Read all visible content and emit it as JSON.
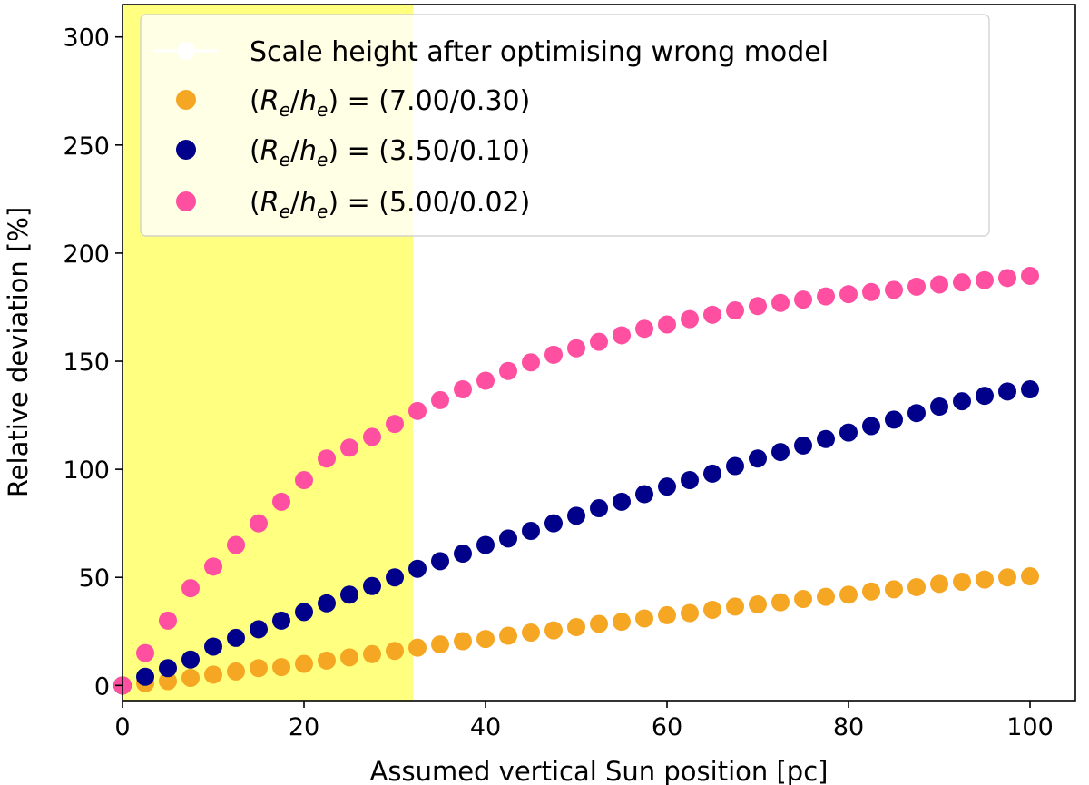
{
  "chart_data": {
    "type": "scatter",
    "title": "",
    "xlabel": "Assumed vertical Sun position [pc]",
    "ylabel": "Relative deviation [%]",
    "xlim": [
      0,
      105
    ],
    "ylim": [
      -7,
      315
    ],
    "xticks": [
      0,
      20,
      40,
      60,
      80,
      100
    ],
    "yticks": [
      0,
      50,
      100,
      150,
      200,
      250,
      300
    ],
    "grid": false,
    "legend_position": "top-left",
    "shaded_region": {
      "x_start": 0,
      "x_end": 32,
      "color": "#ffff80"
    },
    "colors": {
      "orange": "#f5a623",
      "navy": "#00008b",
      "pink": "#ff4fa0",
      "shade": "#ffff80"
    },
    "series": [
      {
        "name": "Scale height after optimising wrong model",
        "style": "line-marker",
        "color": "#ffffff",
        "x": [
          0,
          100
        ],
        "values": [
          0,
          0
        ]
      },
      {
        "name": "(R_e/h_e) = (7.00/0.30)",
        "style": "marker",
        "color": "#f5a623",
        "x": [
          0,
          2.5,
          5,
          7.5,
          10,
          12.5,
          15,
          17.5,
          20,
          22.5,
          25,
          27.5,
          30,
          32.5,
          35,
          37.5,
          40,
          42.5,
          45,
          47.5,
          50,
          52.5,
          55,
          57.5,
          60,
          62.5,
          65,
          67.5,
          70,
          72.5,
          75,
          77.5,
          80,
          82.5,
          85,
          87.5,
          90,
          92.5,
          95,
          97.5,
          100
        ],
        "values": [
          0,
          1,
          2,
          3.5,
          5,
          6.5,
          8,
          8.5,
          10,
          11.5,
          13,
          14.5,
          16,
          17.5,
          19,
          20.5,
          21.5,
          23,
          24.5,
          25.5,
          27,
          28.5,
          29.5,
          31,
          32.5,
          33.5,
          35,
          36.5,
          37.5,
          38.5,
          40,
          41,
          42,
          43.5,
          44.5,
          45.5,
          47,
          48,
          49,
          50,
          50.5
        ]
      },
      {
        "name": "(R_e/h_e) = (3.50/0.10)",
        "style": "marker",
        "color": "#00008b",
        "x": [
          0,
          2.5,
          5,
          7.5,
          10,
          12.5,
          15,
          17.5,
          20,
          22.5,
          25,
          27.5,
          30,
          32.5,
          35,
          37.5,
          40,
          42.5,
          45,
          47.5,
          50,
          52.5,
          55,
          57.5,
          60,
          62.5,
          65,
          67.5,
          70,
          72.5,
          75,
          77.5,
          80,
          82.5,
          85,
          87.5,
          90,
          92.5,
          95,
          97.5,
          100
        ],
        "values": [
          0,
          4,
          8,
          12,
          18,
          22,
          26,
          30,
          34,
          38,
          42,
          46,
          50,
          54,
          57.5,
          61,
          65,
          68,
          71.5,
          75,
          78.5,
          82,
          85,
          88.5,
          92,
          95,
          98,
          101.5,
          105,
          108,
          111,
          114,
          117,
          120,
          123,
          126,
          129,
          131.5,
          134,
          136,
          137
        ]
      },
      {
        "name": "(R_e/h_e) = (5.00/0.02)",
        "style": "marker",
        "color": "#ff4fa0",
        "x": [
          0,
          2.5,
          5,
          7.5,
          10,
          12.5,
          15,
          17.5,
          20,
          22.5,
          25,
          27.5,
          30,
          32.5,
          35,
          37.5,
          40,
          42.5,
          45,
          47.5,
          50,
          52.5,
          55,
          57.5,
          60,
          62.5,
          65,
          67.5,
          70,
          72.5,
          75,
          77.5,
          80,
          82.5,
          85,
          87.5,
          90,
          92.5,
          95,
          97.5,
          100
        ],
        "values": [
          0,
          15,
          30,
          45,
          55,
          65,
          75,
          85,
          95,
          105,
          110,
          115,
          121,
          127,
          132,
          137,
          141,
          145.5,
          149.5,
          153,
          156,
          159,
          162,
          165,
          167,
          169.5,
          171.5,
          173.5,
          175.5,
          177,
          178.5,
          180,
          181,
          182,
          183,
          184.5,
          185.5,
          186.5,
          187.5,
          188.5,
          189.5
        ]
      }
    ]
  },
  "legend": {
    "entries": [
      {
        "prefix": "Scale height after optimising wrong model",
        "suffix": ""
      },
      {
        "prefix": "(",
        "R": "R",
        "sub1": "e",
        "slash": "/",
        "h": "h",
        "sub2": "e",
        "suffix": ") = (7.00/0.30)"
      },
      {
        "prefix": "(",
        "R": "R",
        "sub1": "e",
        "slash": "/",
        "h": "h",
        "sub2": "e",
        "suffix": ") = (3.50/0.10)"
      },
      {
        "prefix": "(",
        "R": "R",
        "sub1": "e",
        "slash": "/",
        "h": "h",
        "sub2": "e",
        "suffix": ") = (5.00/0.02)"
      }
    ]
  }
}
